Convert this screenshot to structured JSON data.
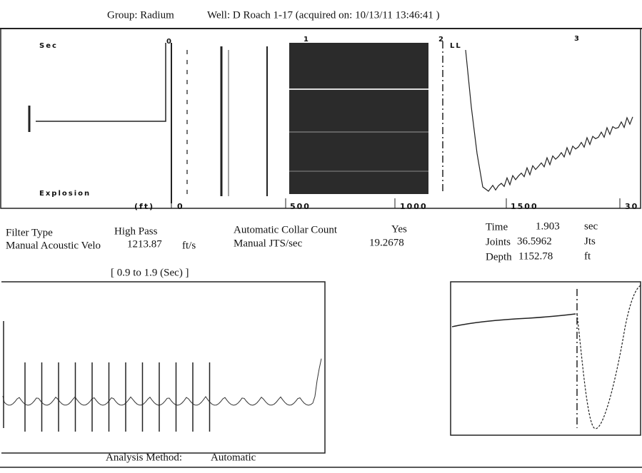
{
  "header": {
    "group": "Group: Radium",
    "well": "Well: D Roach 1-17 (acquired on: 10/13/11 13:46:41 )"
  },
  "main_panel": {
    "y_label": "Sec",
    "source_label": "Explosion",
    "x_unit": "(ft)",
    "x_labels": [
      "0",
      "500",
      "1000",
      "1500",
      "30"
    ],
    "markers": [
      "0",
      "1",
      "2",
      "3",
      "LL"
    ]
  },
  "settings": {
    "filter_type": {
      "label": "Filter Type",
      "value": "High Pass"
    },
    "manual_velocity": {
      "label": "Manual Acoustic Velo",
      "value": "1213.87",
      "unit": "ft/s"
    },
    "collar_count": {
      "label": "Automatic Collar Count",
      "value": "Yes"
    },
    "manual_jts": {
      "label": "Manual JTS/sec",
      "value": "19.2678"
    }
  },
  "results": {
    "time": {
      "label": "Time",
      "value": "1.903",
      "unit": "sec"
    },
    "joints": {
      "label": "Joints",
      "value": "36.5962",
      "unit": "Jts"
    },
    "depth": {
      "label": "Depth",
      "value": "1152.78",
      "unit": "ft"
    }
  },
  "window_label": "[ 0.9 to 1.9 (Sec) ]",
  "footer": {
    "label": "Analysis Method:",
    "value": "Automatic"
  }
}
